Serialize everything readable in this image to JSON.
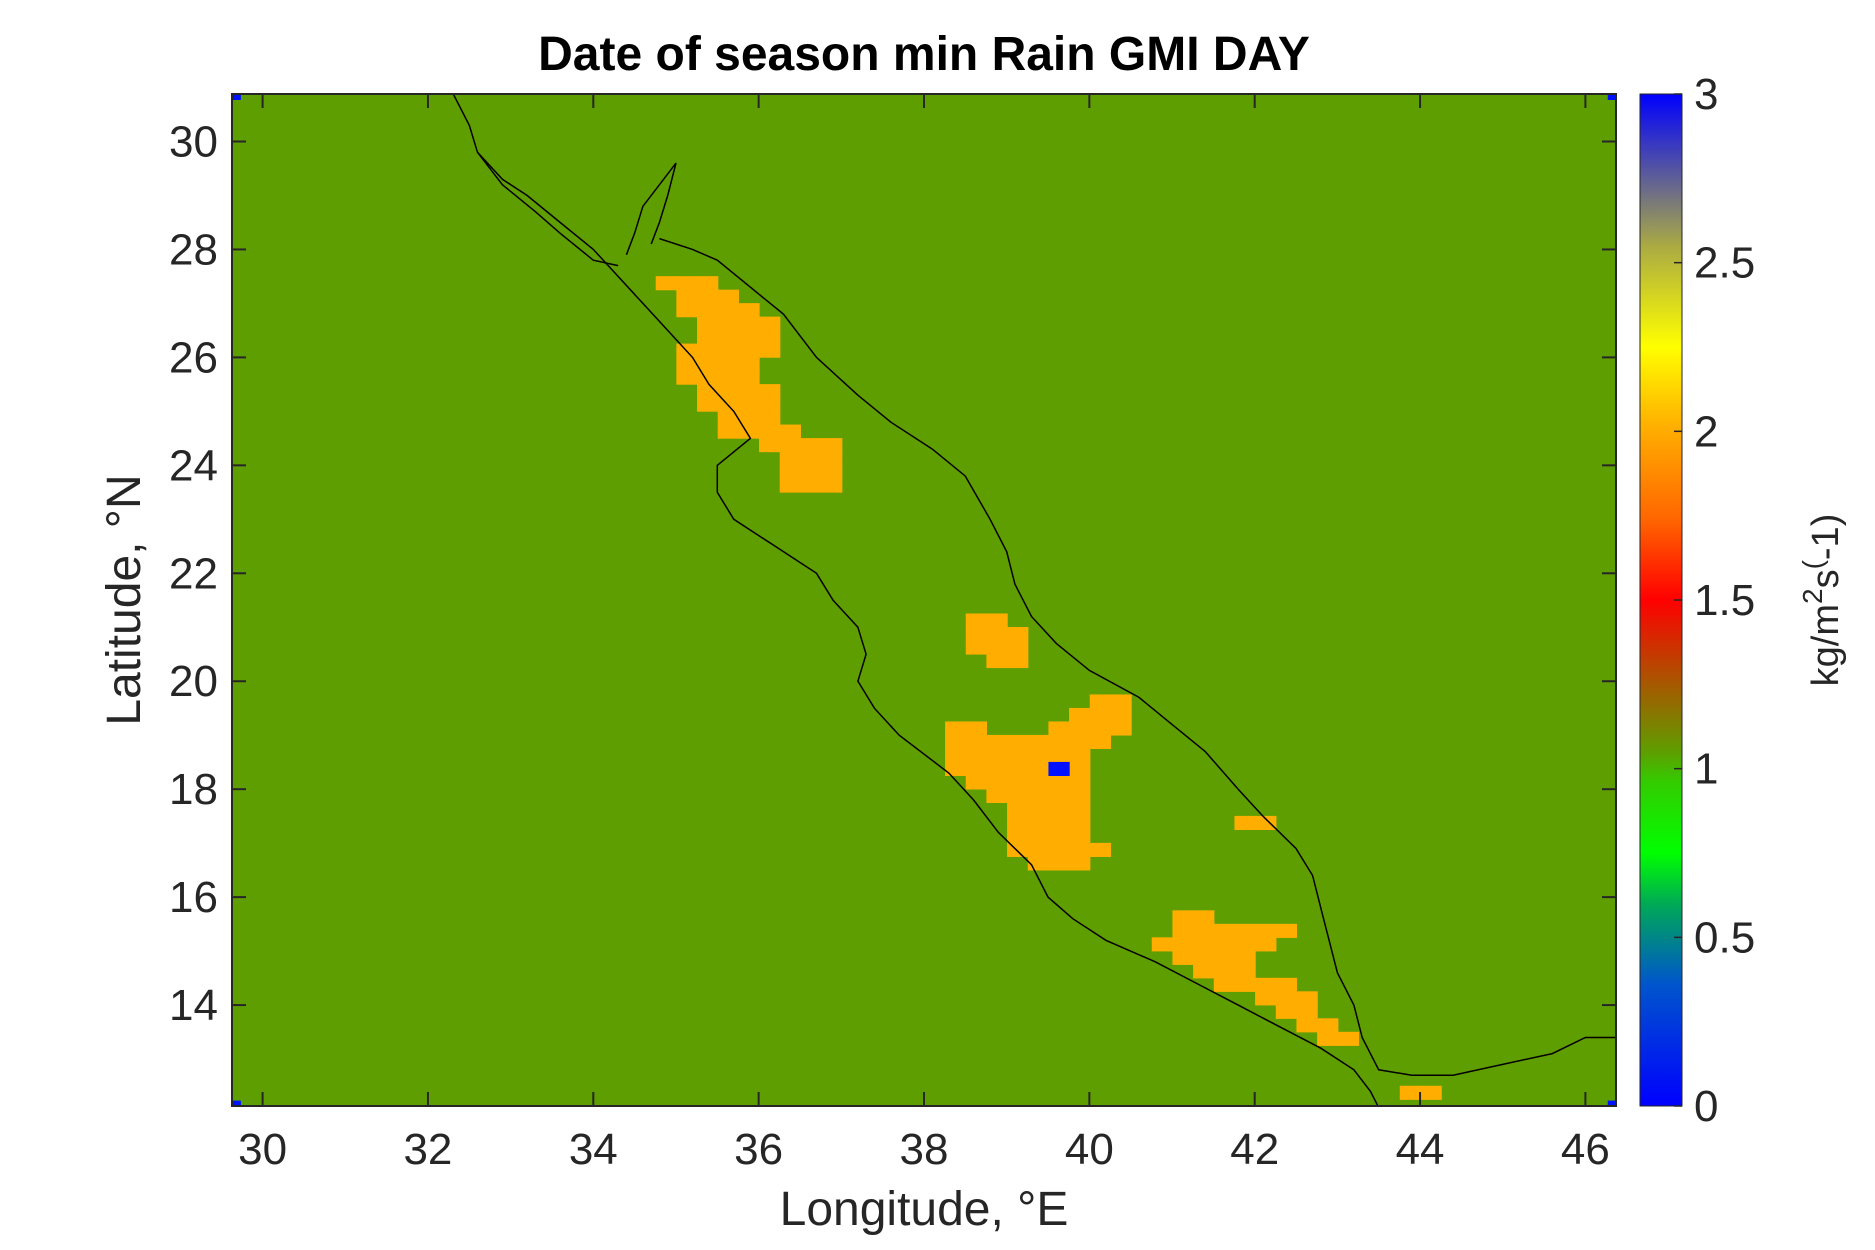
{
  "chart_data": {
    "type": "heatmap",
    "title": "Date of season min Rain GMI DAY",
    "xlabel": "Longitude, °E",
    "ylabel": "Latitude, °N",
    "xlim": [
      29.63,
      46.37
    ],
    "ylim": [
      12.13,
      30.88
    ],
    "x_ticks": [
      30,
      32,
      34,
      36,
      38,
      40,
      42,
      44,
      46
    ],
    "y_ticks": [
      14,
      16,
      18,
      20,
      22,
      24,
      26,
      28,
      30
    ],
    "background_value": 1,
    "background_color": "#5f9e00",
    "cell_size_deg": 0.25,
    "colorbar": {
      "label": "kg/m^2s^(-1)",
      "label_main": "kg/m",
      "label_sup1": "2",
      "label_mid": "s",
      "label_sup2": "(",
      "label_end": "-1)",
      "min": 0,
      "max": 3,
      "ticks": [
        0,
        0.5,
        1,
        1.5,
        2,
        2.5,
        3
      ],
      "tick_labels": [
        "0",
        "0.5",
        "1",
        "1.5",
        "2",
        "2.5",
        "3"
      ]
    },
    "regions": [
      {
        "name": "northern-red-sea-patch",
        "value": 2,
        "color": "#ffae00",
        "cells": [
          [
            34.88,
            27.38
          ],
          [
            35.13,
            27.38
          ],
          [
            35.38,
            27.38
          ],
          [
            35.13,
            27.13
          ],
          [
            35.38,
            27.13
          ],
          [
            35.63,
            27.13
          ],
          [
            35.13,
            26.88
          ],
          [
            35.38,
            26.88
          ],
          [
            35.63,
            26.88
          ],
          [
            35.88,
            26.88
          ],
          [
            35.38,
            26.63
          ],
          [
            35.63,
            26.63
          ],
          [
            35.88,
            26.63
          ],
          [
            36.13,
            26.63
          ],
          [
            35.38,
            26.38
          ],
          [
            35.63,
            26.38
          ],
          [
            35.88,
            26.38
          ],
          [
            36.13,
            26.38
          ],
          [
            35.13,
            26.13
          ],
          [
            35.38,
            26.13
          ],
          [
            35.63,
            26.13
          ],
          [
            35.88,
            26.13
          ],
          [
            36.13,
            26.13
          ],
          [
            35.13,
            25.88
          ],
          [
            35.38,
            25.88
          ],
          [
            35.63,
            25.88
          ],
          [
            35.88,
            25.88
          ],
          [
            35.13,
            25.63
          ],
          [
            35.38,
            25.63
          ],
          [
            35.63,
            25.63
          ],
          [
            35.88,
            25.63
          ],
          [
            35.38,
            25.38
          ],
          [
            35.63,
            25.38
          ],
          [
            35.88,
            25.38
          ],
          [
            36.13,
            25.38
          ],
          [
            35.38,
            25.13
          ],
          [
            35.63,
            25.13
          ],
          [
            35.88,
            25.13
          ],
          [
            36.13,
            25.13
          ],
          [
            35.63,
            24.88
          ],
          [
            35.88,
            24.88
          ],
          [
            36.13,
            24.88
          ],
          [
            35.63,
            24.63
          ],
          [
            35.88,
            24.63
          ],
          [
            36.13,
            24.63
          ],
          [
            36.38,
            24.63
          ],
          [
            36.13,
            24.38
          ],
          [
            36.38,
            24.38
          ],
          [
            36.63,
            24.38
          ],
          [
            36.88,
            24.38
          ],
          [
            36.38,
            24.13
          ],
          [
            36.63,
            24.13
          ],
          [
            36.88,
            24.13
          ],
          [
            36.38,
            23.88
          ],
          [
            36.63,
            23.88
          ],
          [
            36.88,
            23.88
          ],
          [
            36.38,
            23.63
          ],
          [
            36.63,
            23.63
          ],
          [
            36.88,
            23.63
          ]
        ]
      },
      {
        "name": "central-patch",
        "value": 2,
        "color": "#ffae00",
        "cells": [
          [
            38.63,
            21.13
          ],
          [
            38.88,
            21.13
          ],
          [
            38.63,
            20.88
          ],
          [
            38.88,
            20.88
          ],
          [
            39.13,
            20.88
          ],
          [
            38.63,
            20.63
          ],
          [
            38.88,
            20.63
          ],
          [
            39.13,
            20.63
          ],
          [
            38.88,
            20.38
          ],
          [
            39.13,
            20.38
          ]
        ]
      },
      {
        "name": "southern-central-patch",
        "value": 2,
        "color": "#ffae00",
        "cells": [
          [
            40.13,
            19.63
          ],
          [
            40.38,
            19.63
          ],
          [
            39.88,
            19.38
          ],
          [
            40.13,
            19.38
          ],
          [
            40.38,
            19.38
          ],
          [
            39.88,
            19.13
          ],
          [
            40.13,
            19.13
          ],
          [
            40.38,
            19.13
          ],
          [
            38.38,
            19.13
          ],
          [
            38.63,
            19.13
          ],
          [
            39.63,
            19.13
          ],
          [
            38.38,
            18.88
          ],
          [
            38.63,
            18.88
          ],
          [
            38.88,
            18.88
          ],
          [
            39.13,
            18.88
          ],
          [
            39.38,
            18.88
          ],
          [
            39.63,
            18.88
          ],
          [
            39.88,
            18.88
          ],
          [
            40.13,
            18.88
          ],
          [
            38.38,
            18.63
          ],
          [
            38.63,
            18.63
          ],
          [
            38.88,
            18.63
          ],
          [
            39.13,
            18.63
          ],
          [
            39.38,
            18.63
          ],
          [
            39.63,
            18.63
          ],
          [
            39.88,
            18.63
          ],
          [
            38.38,
            18.38
          ],
          [
            38.63,
            18.38
          ],
          [
            38.88,
            18.38
          ],
          [
            39.13,
            18.38
          ],
          [
            39.38,
            18.38
          ],
          [
            39.88,
            18.38
          ],
          [
            38.63,
            18.13
          ],
          [
            38.88,
            18.13
          ],
          [
            39.13,
            18.13
          ],
          [
            39.38,
            18.13
          ],
          [
            39.63,
            18.13
          ],
          [
            39.88,
            18.13
          ],
          [
            38.88,
            17.88
          ],
          [
            39.13,
            17.88
          ],
          [
            39.38,
            17.88
          ],
          [
            39.63,
            17.88
          ],
          [
            39.88,
            17.88
          ],
          [
            39.13,
            17.63
          ],
          [
            39.38,
            17.63
          ],
          [
            39.63,
            17.63
          ],
          [
            39.88,
            17.63
          ],
          [
            39.13,
            17.38
          ],
          [
            39.38,
            17.38
          ],
          [
            39.63,
            17.38
          ],
          [
            39.88,
            17.38
          ],
          [
            39.13,
            17.13
          ],
          [
            39.38,
            17.13
          ],
          [
            39.63,
            17.13
          ],
          [
            39.88,
            17.13
          ],
          [
            39.13,
            16.88
          ],
          [
            39.38,
            16.88
          ],
          [
            39.63,
            16.88
          ],
          [
            39.88,
            16.88
          ],
          [
            40.13,
            16.88
          ],
          [
            39.38,
            16.63
          ],
          [
            39.63,
            16.63
          ],
          [
            39.88,
            16.63
          ]
        ]
      },
      {
        "name": "min-date-cell",
        "value": 0,
        "color": "#0011ff",
        "cells": [
          [
            39.63,
            18.38
          ]
        ]
      },
      {
        "name": "small-strip",
        "value": 2,
        "color": "#ffae00",
        "cells": [
          [
            41.88,
            17.38
          ],
          [
            42.13,
            17.38
          ]
        ]
      },
      {
        "name": "southern-red-sea-patch",
        "value": 2,
        "color": "#ffae00",
        "cells": [
          [
            41.13,
            15.63
          ],
          [
            41.38,
            15.63
          ],
          [
            41.13,
            15.38
          ],
          [
            41.38,
            15.38
          ],
          [
            41.63,
            15.38
          ],
          [
            41.88,
            15.38
          ],
          [
            42.13,
            15.38
          ],
          [
            42.38,
            15.38
          ],
          [
            40.88,
            15.13
          ],
          [
            41.13,
            15.13
          ],
          [
            41.38,
            15.13
          ],
          [
            41.63,
            15.13
          ],
          [
            41.88,
            15.13
          ],
          [
            42.13,
            15.13
          ],
          [
            41.13,
            14.88
          ],
          [
            41.38,
            14.88
          ],
          [
            41.63,
            14.88
          ],
          [
            41.88,
            14.88
          ],
          [
            41.38,
            14.63
          ],
          [
            41.63,
            14.63
          ],
          [
            41.88,
            14.63
          ],
          [
            41.63,
            14.38
          ],
          [
            41.88,
            14.38
          ],
          [
            42.13,
            14.38
          ],
          [
            42.38,
            14.38
          ],
          [
            42.13,
            14.13
          ],
          [
            42.38,
            14.13
          ],
          [
            42.63,
            14.13
          ],
          [
            42.38,
            13.88
          ],
          [
            42.63,
            13.88
          ],
          [
            42.63,
            13.63
          ],
          [
            42.88,
            13.63
          ],
          [
            42.88,
            13.38
          ],
          [
            43.13,
            13.38
          ]
        ]
      },
      {
        "name": "bottom-edge-patch",
        "value": 2,
        "color": "#ffae00",
        "cells": [
          [
            43.88,
            12.38
          ],
          [
            44.13,
            12.38
          ]
        ]
      },
      {
        "name": "corner-cell-tl",
        "value": 0,
        "color": "#0011ff",
        "cells": [
          [
            29.68,
            30.83
          ]
        ]
      },
      {
        "name": "corner-cell-tr",
        "value": 0,
        "color": "#0011ff",
        "cells": [
          [
            46.32,
            30.83
          ]
        ]
      },
      {
        "name": "corner-cell-bl",
        "value": 0,
        "color": "#0011ff",
        "cells": [
          [
            29.68,
            12.18
          ]
        ]
      },
      {
        "name": "corner-cell-br",
        "value": 0,
        "color": "#0011ff",
        "cells": [
          [
            46.32,
            12.18
          ]
        ]
      }
    ],
    "coastlines": [
      {
        "name": "african-coast",
        "points": [
          [
            32.3,
            30.9
          ],
          [
            32.5,
            30.3
          ],
          [
            32.6,
            29.8
          ],
          [
            32.9,
            29.3
          ],
          [
            33.2,
            29.0
          ],
          [
            33.6,
            28.5
          ],
          [
            34.0,
            28.0
          ],
          [
            34.3,
            27.5
          ],
          [
            34.6,
            27.0
          ],
          [
            34.9,
            26.5
          ],
          [
            35.2,
            26.0
          ],
          [
            35.4,
            25.5
          ],
          [
            35.7,
            25.0
          ],
          [
            35.9,
            24.5
          ],
          [
            35.5,
            24.0
          ],
          [
            35.5,
            23.5
          ],
          [
            35.7,
            23.0
          ],
          [
            36.2,
            22.5
          ],
          [
            36.7,
            22.0
          ],
          [
            36.9,
            21.5
          ],
          [
            37.2,
            21.0
          ],
          [
            37.3,
            20.5
          ],
          [
            37.2,
            20.0
          ],
          [
            37.4,
            19.5
          ],
          [
            37.7,
            19.0
          ],
          [
            38.3,
            18.3
          ],
          [
            38.6,
            17.8
          ],
          [
            38.9,
            17.2
          ],
          [
            39.3,
            16.6
          ],
          [
            39.5,
            16.0
          ],
          [
            39.8,
            15.6
          ],
          [
            40.2,
            15.2
          ],
          [
            40.8,
            14.8
          ],
          [
            41.3,
            14.4
          ],
          [
            41.8,
            14.0
          ],
          [
            42.3,
            13.6
          ],
          [
            42.8,
            13.2
          ],
          [
            43.2,
            12.8
          ],
          [
            43.4,
            12.4
          ],
          [
            43.5,
            12.1
          ]
        ]
      },
      {
        "name": "arabian-coast",
        "points": [
          [
            34.8,
            28.2
          ],
          [
            35.2,
            28.0
          ],
          [
            35.5,
            27.8
          ],
          [
            35.9,
            27.3
          ],
          [
            36.3,
            26.8
          ],
          [
            36.7,
            26.0
          ],
          [
            37.2,
            25.3
          ],
          [
            37.6,
            24.8
          ],
          [
            38.1,
            24.3
          ],
          [
            38.5,
            23.8
          ],
          [
            38.8,
            23.0
          ],
          [
            39.0,
            22.4
          ],
          [
            39.1,
            21.8
          ],
          [
            39.3,
            21.2
          ],
          [
            39.6,
            20.7
          ],
          [
            40.0,
            20.2
          ],
          [
            40.6,
            19.7
          ],
          [
            41.0,
            19.2
          ],
          [
            41.4,
            18.7
          ],
          [
            41.8,
            18.0
          ],
          [
            42.1,
            17.5
          ],
          [
            42.5,
            16.9
          ],
          [
            42.7,
            16.4
          ],
          [
            42.8,
            15.8
          ],
          [
            42.9,
            15.2
          ],
          [
            43.0,
            14.6
          ],
          [
            43.2,
            14.0
          ],
          [
            43.3,
            13.4
          ],
          [
            43.5,
            12.8
          ],
          [
            43.9,
            12.7
          ],
          [
            44.4,
            12.7
          ],
          [
            45.0,
            12.9
          ],
          [
            45.6,
            13.1
          ],
          [
            46.0,
            13.4
          ],
          [
            46.4,
            13.4
          ]
        ]
      },
      {
        "name": "sinai-west-coast",
        "points": [
          [
            32.6,
            29.8
          ],
          [
            32.9,
            29.2
          ],
          [
            33.3,
            28.7
          ],
          [
            33.6,
            28.3
          ],
          [
            34.0,
            27.8
          ],
          [
            34.3,
            27.7
          ]
        ]
      },
      {
        "name": "gulf-of-aqaba",
        "points": [
          [
            34.4,
            27.9
          ],
          [
            34.5,
            28.3
          ],
          [
            34.6,
            28.8
          ],
          [
            34.9,
            29.4
          ],
          [
            35.0,
            29.6
          ],
          [
            34.9,
            29.0
          ],
          [
            34.8,
            28.5
          ],
          [
            34.7,
            28.1
          ]
        ]
      }
    ]
  }
}
